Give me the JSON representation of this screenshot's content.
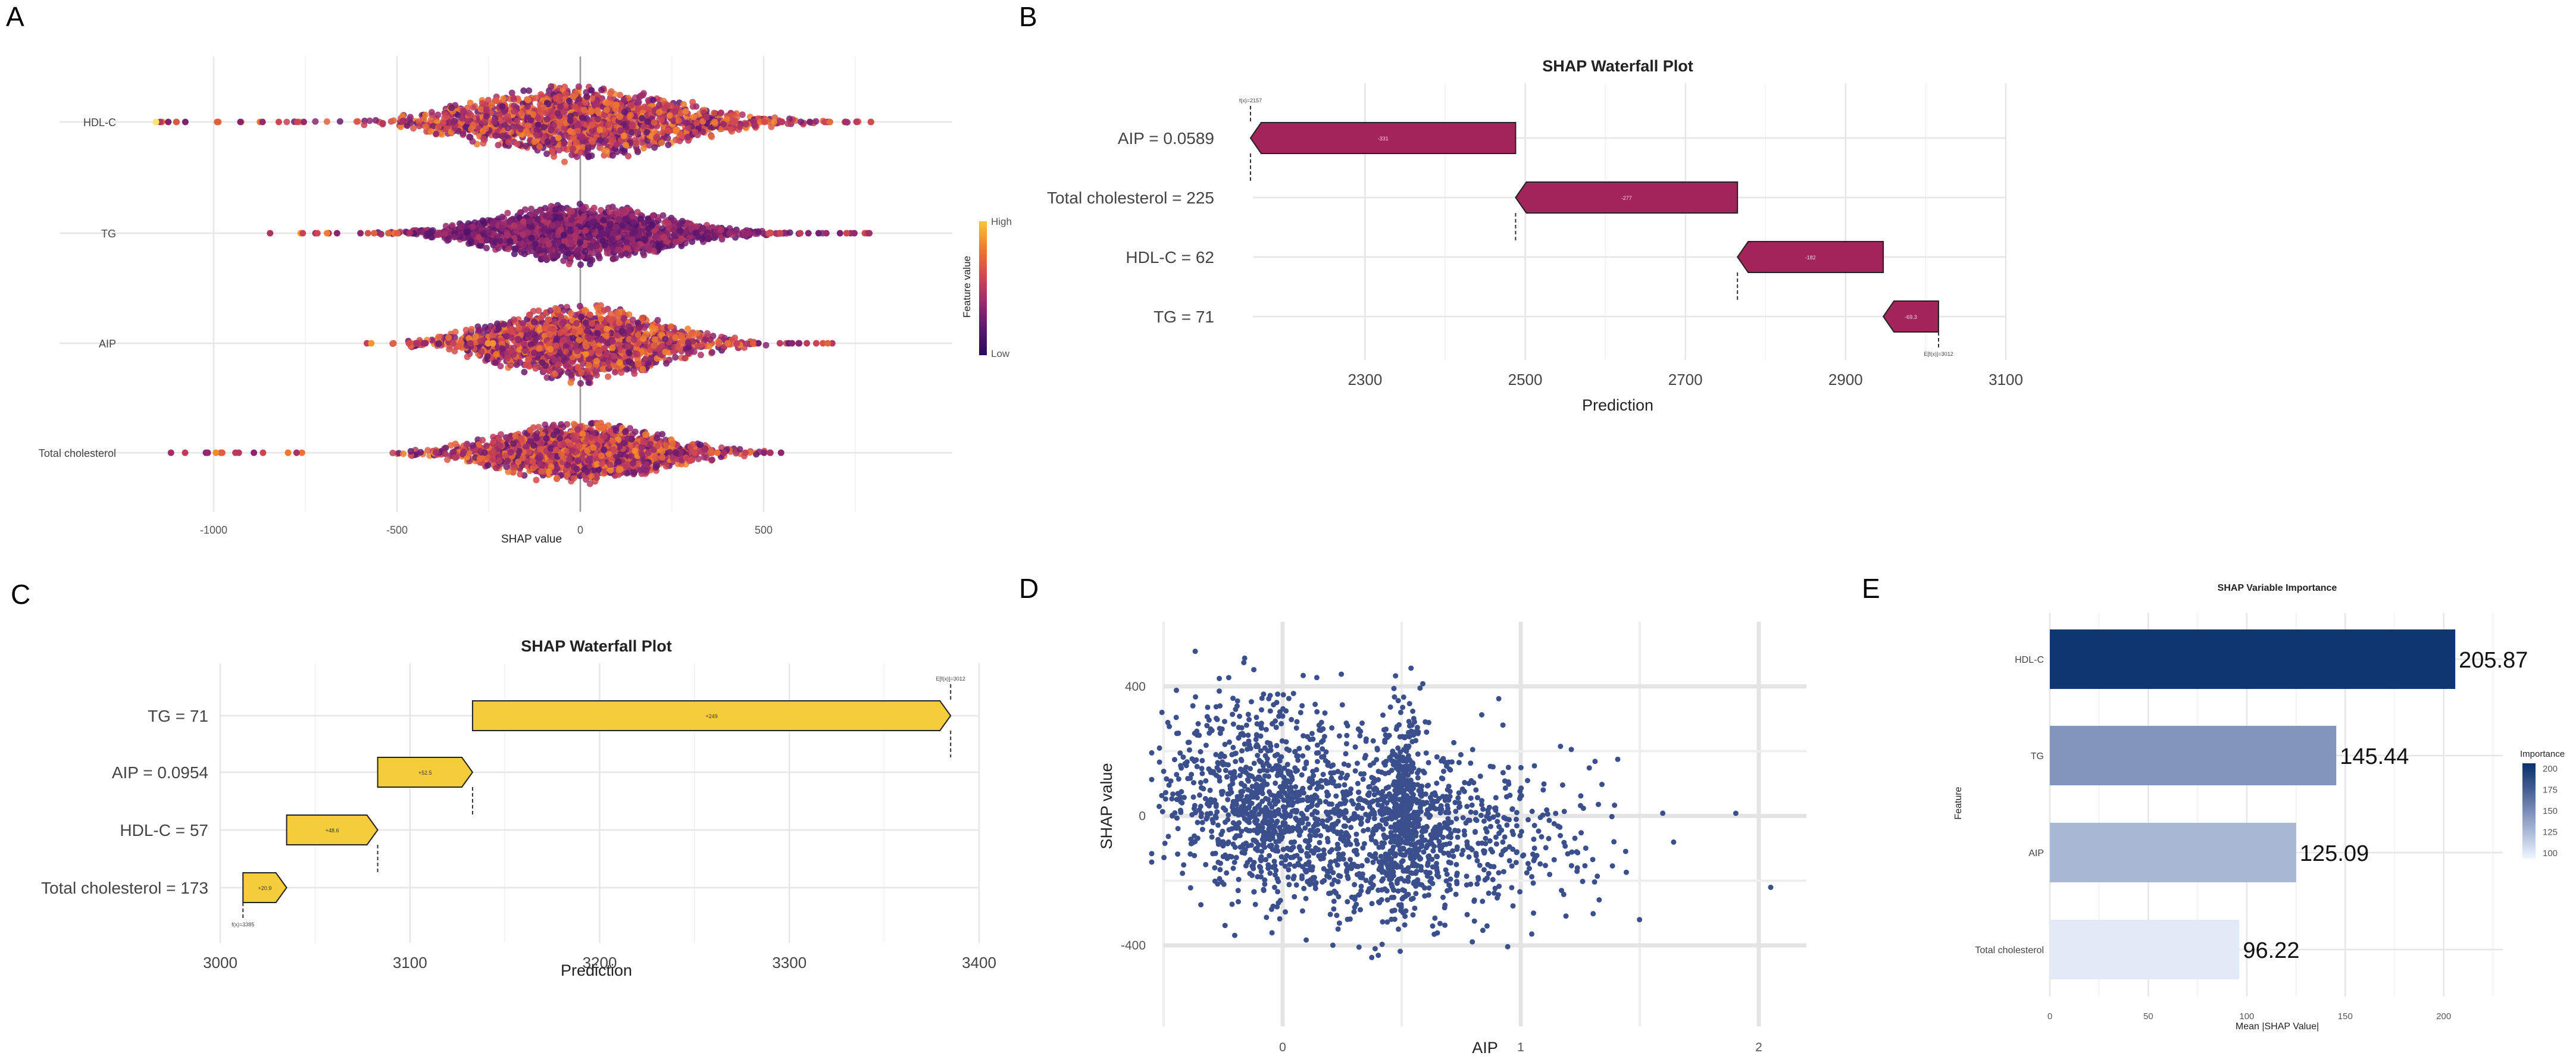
{
  "panels": {
    "a": {
      "letter": "A"
    },
    "b": {
      "letter": "B"
    },
    "c": {
      "letter": "C"
    },
    "d": {
      "letter": "D"
    },
    "e": {
      "letter": "E"
    }
  },
  "chart_data": [
    {
      "id": "A",
      "type": "scatter",
      "subtype": "beeswarm",
      "title": "",
      "xlabel": "SHAP value",
      "ylabel": "",
      "xlim": [
        -1100,
        900
      ],
      "xticks": [
        -1000,
        -500,
        0,
        500
      ],
      "features": [
        {
          "name": "HDL-C",
          "min": -1150,
          "max": 800,
          "spread": 0.9
        },
        {
          "name": "TG",
          "min": -850,
          "max": 800,
          "spread": 0.7
        },
        {
          "name": "AIP",
          "min": -630,
          "max": 700,
          "spread": 0.8
        },
        {
          "name": "Total cholesterol",
          "min": -1130,
          "max": 550,
          "spread": 0.65
        }
      ],
      "legend": {
        "title": "Feature value",
        "high": "High",
        "low": "Low",
        "position": "right"
      },
      "colors": {
        "low": "#4a0c6b",
        "mid": "#c73e4c",
        "high": "#f7b32b"
      }
    },
    {
      "id": "B",
      "type": "bar",
      "subtype": "waterfall",
      "title": "SHAP Waterfall Plot",
      "xlabel": "Prediction",
      "xlim": [
        2160,
        3100
      ],
      "xticks": [
        2300,
        2500,
        2700,
        2900,
        3100
      ],
      "baseline_label": "f(x)=2157",
      "expected_label": "E[f(x)]=3012",
      "bars": [
        {
          "feature": "AIP = 0.0589",
          "start": 2488,
          "end": 2157,
          "label": "-331"
        },
        {
          "feature": "Total cholesterol = 225",
          "start": 2765,
          "end": 2488,
          "label": "-277"
        },
        {
          "feature": "HDL-C = 62",
          "start": 2947,
          "end": 2765,
          "label": "-182"
        },
        {
          "feature": "TG = 71",
          "start": 3016,
          "end": 2947,
          "label": "-69.3"
        }
      ],
      "color": "#a3245a"
    },
    {
      "id": "C",
      "type": "bar",
      "subtype": "waterfall",
      "title": "SHAP Waterfall Plot",
      "xlabel": "Prediction",
      "xlim": [
        3000,
        3400
      ],
      "xticks": [
        3000,
        3100,
        3200,
        3300,
        3400
      ],
      "baseline_label": "E[f(x)]=3012",
      "expected_label": "f(x)=3385",
      "bars": [
        {
          "feature": "TG = 71",
          "start": 3133,
          "end": 3385,
          "label": "+249"
        },
        {
          "feature": "AIP = 0.0954",
          "start": 3083,
          "end": 3133,
          "label": "+52.5"
        },
        {
          "feature": "HDL-C = 57",
          "start": 3035,
          "end": 3083,
          "label": "+48.6"
        },
        {
          "feature": "Total cholesterol = 173",
          "start": 3012,
          "end": 3035,
          "label": "+20.9"
        }
      ],
      "color": "#f5cd3a"
    },
    {
      "id": "D",
      "type": "scatter",
      "title": "",
      "xlabel": "AIP",
      "ylabel": "SHAP value",
      "xlim": [
        -0.5,
        2.2
      ],
      "ylim": [
        -650,
        600
      ],
      "xticks": [
        0,
        1,
        2
      ],
      "yticks": [
        -400,
        0,
        400
      ],
      "point_color": "#3a4f8c"
    },
    {
      "id": "E",
      "type": "bar",
      "orientation": "horizontal",
      "title": "SHAP Variable Importance",
      "xlabel": "Mean |SHAP Value|",
      "ylabel": "Feature",
      "xlim": [
        0,
        230
      ],
      "xticks": [
        0,
        50,
        100,
        150,
        200
      ],
      "categories": [
        "HDL-C",
        "TG",
        "AIP",
        "Total cholesterol"
      ],
      "values": [
        205.87,
        145.44,
        125.09,
        96.22
      ],
      "value_labels": [
        "205.87",
        "145.44",
        "125.09",
        "96.22"
      ],
      "legend": {
        "title": "Importance",
        "ticks": [
          "200",
          "175",
          "150",
          "125",
          "100"
        ],
        "position": "right"
      },
      "colors": {
        "high": "#08306b",
        "low": "#eef5ff"
      }
    }
  ]
}
